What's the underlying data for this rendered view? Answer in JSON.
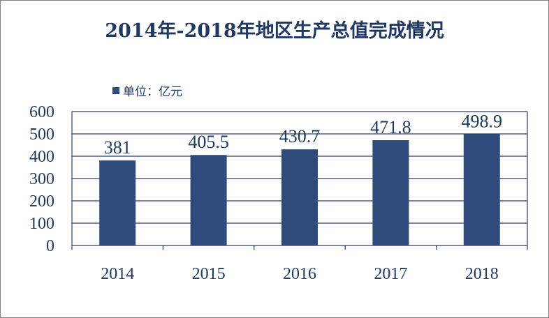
{
  "chart_data": {
    "type": "bar",
    "title": "2014年-2018年地区生产总值完成情况",
    "categories": [
      "2014",
      "2015",
      "2016",
      "2017",
      "2018"
    ],
    "series": [
      {
        "name": "单位：亿元",
        "values": [
          381,
          405.5,
          430.7,
          471.8,
          498.9
        ],
        "labels": [
          "381",
          "405.5",
          "430.7",
          "471.8",
          "498.9"
        ]
      }
    ],
    "ylim": [
      0,
      600
    ],
    "yticks": [
      "0",
      "100",
      "200",
      "300",
      "400",
      "500",
      "600"
    ],
    "grid": true,
    "legend": "top-left"
  },
  "colors": {
    "bar": "#2f4b7c",
    "grid": "#2a3d6b",
    "text": "#1f3864"
  }
}
